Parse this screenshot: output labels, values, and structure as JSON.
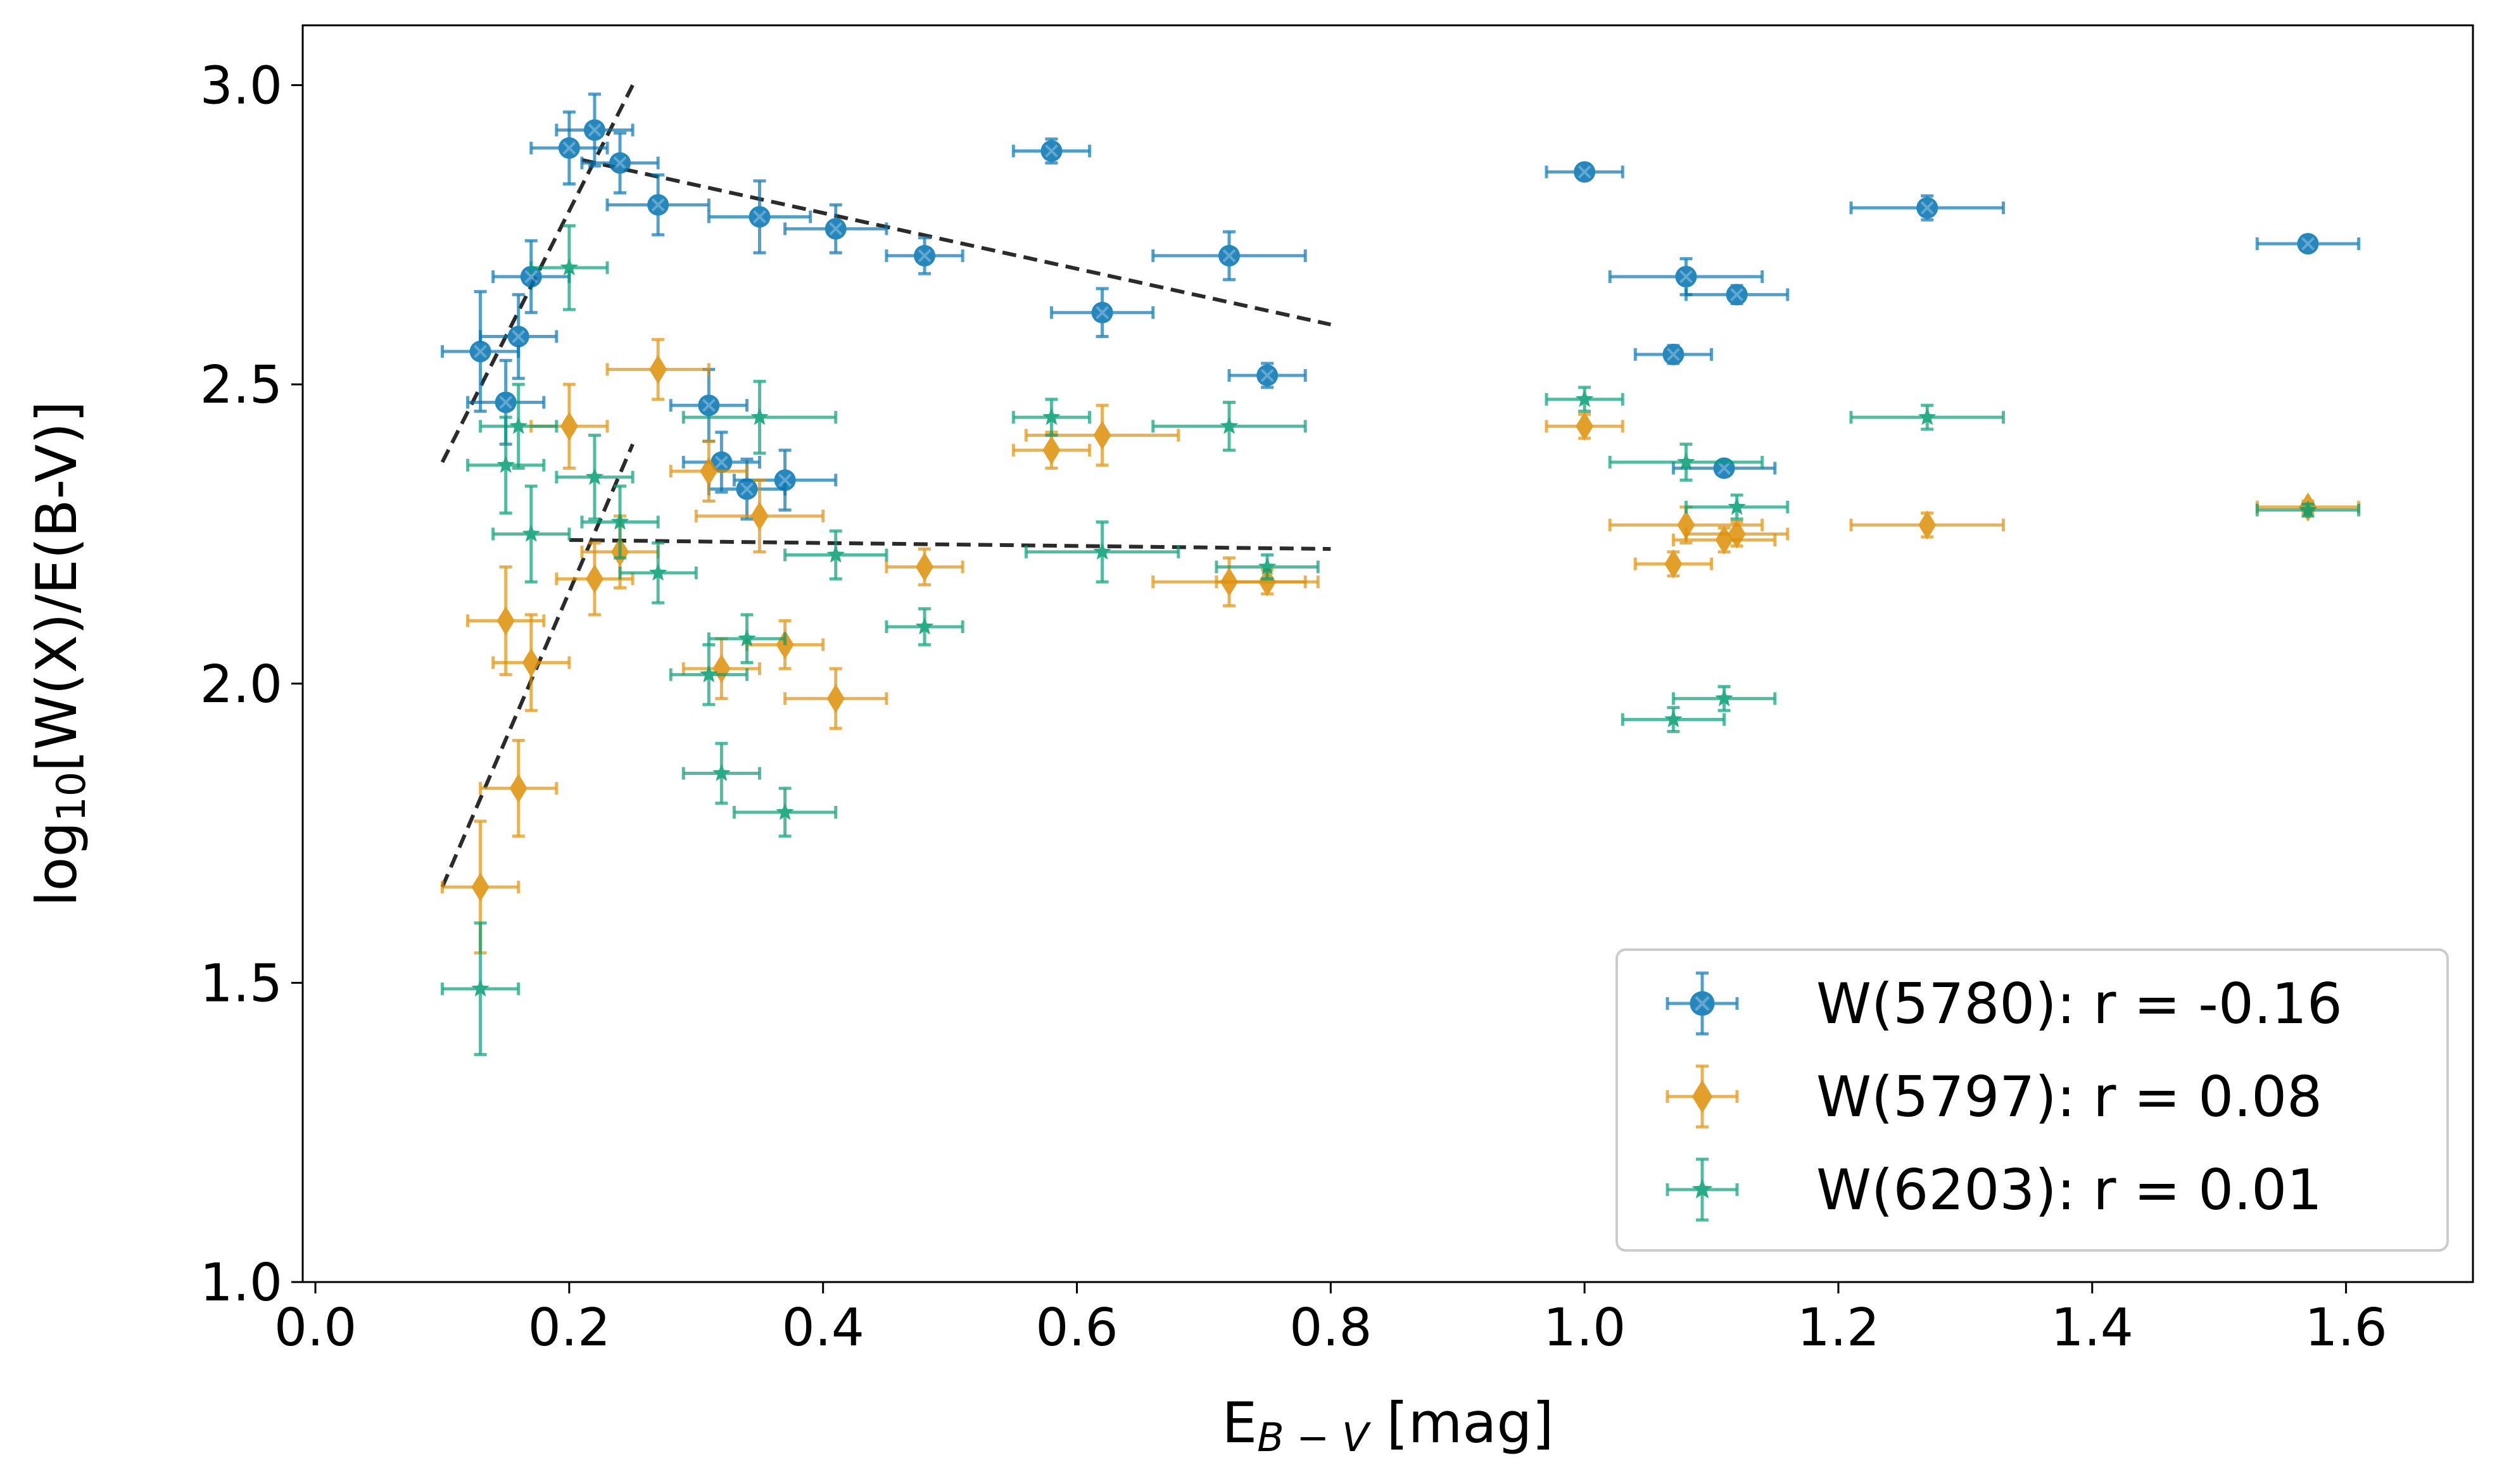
{
  "chart_data": {
    "type": "scatter",
    "xlabel_main": "E",
    "xlabel_sub": "B − V",
    "xlabel_unit": " [mag]",
    "ylabel_pre": "log",
    "ylabel_sub": "10",
    "ylabel_post": "[W(X)/E(B-V)]",
    "xlim": [
      -0.01,
      1.7
    ],
    "ylim": [
      1.0,
      3.1
    ],
    "xticks": [
      "0.0",
      "0.2",
      "0.4",
      "0.6",
      "0.8",
      "1.0",
      "1.2",
      "1.4",
      "1.6"
    ],
    "xtick_values": [
      0.0,
      0.2,
      0.4,
      0.6,
      0.8,
      1.0,
      1.2,
      1.4,
      1.6
    ],
    "yticks": [
      "1.0",
      "1.5",
      "2.0",
      "2.5",
      "3.0"
    ],
    "ytick_values": [
      1.0,
      1.5,
      2.0,
      2.5,
      3.0
    ],
    "legend_position": "lower-right",
    "series": [
      {
        "name": "W(5780): r = -0.16",
        "color": "#0173b2",
        "marker": "x-circle",
        "points": [
          [
            0.13,
            2.555,
            0.03,
            0.1
          ],
          [
            0.15,
            2.47,
            0.03,
            0.07
          ],
          [
            0.16,
            2.58,
            0.03,
            0.07
          ],
          [
            0.17,
            2.68,
            0.03,
            0.06
          ],
          [
            0.2,
            2.895,
            0.03,
            0.06
          ],
          [
            0.22,
            2.925,
            0.03,
            0.06
          ],
          [
            0.24,
            2.87,
            0.03,
            0.05
          ],
          [
            0.27,
            2.8,
            0.04,
            0.05
          ],
          [
            0.31,
            2.465,
            0.03,
            0.06
          ],
          [
            0.32,
            2.37,
            0.03,
            0.05
          ],
          [
            0.34,
            2.325,
            0.03,
            0.05
          ],
          [
            0.35,
            2.78,
            0.04,
            0.06
          ],
          [
            0.37,
            2.34,
            0.04,
            0.05
          ],
          [
            0.41,
            2.76,
            0.04,
            0.04
          ],
          [
            0.48,
            2.715,
            0.03,
            0.03
          ],
          [
            0.58,
            2.89,
            0.03,
            0.02
          ],
          [
            0.62,
            2.62,
            0.04,
            0.04
          ],
          [
            0.72,
            2.715,
            0.06,
            0.04
          ],
          [
            0.75,
            2.515,
            0.03,
            0.02
          ],
          [
            1.0,
            2.855,
            0.03,
            0.01
          ],
          [
            1.07,
            2.55,
            0.03,
            0.015
          ],
          [
            1.08,
            2.68,
            0.06,
            0.03
          ],
          [
            1.11,
            2.36,
            0.04,
            0.01
          ],
          [
            1.12,
            2.65,
            0.04,
            0.015
          ],
          [
            1.27,
            2.795,
            0.06,
            0.02
          ],
          [
            1.57,
            2.735,
            0.04,
            0.01
          ]
        ]
      },
      {
        "name": "W(5797): r = 0.08",
        "color": "#de8f05",
        "marker": "diamond",
        "points": [
          [
            0.13,
            1.66,
            0.03,
            0.11
          ],
          [
            0.15,
            2.105,
            0.03,
            0.09
          ],
          [
            0.16,
            1.825,
            0.03,
            0.08
          ],
          [
            0.17,
            2.035,
            0.03,
            0.08
          ],
          [
            0.2,
            2.43,
            0.03,
            0.07
          ],
          [
            0.22,
            2.175,
            0.03,
            0.06
          ],
          [
            0.24,
            2.22,
            0.03,
            0.06
          ],
          [
            0.27,
            2.525,
            0.04,
            0.05
          ],
          [
            0.31,
            2.355,
            0.03,
            0.05
          ],
          [
            0.32,
            2.025,
            0.03,
            0.05
          ],
          [
            0.35,
            2.28,
            0.05,
            0.06
          ],
          [
            0.37,
            2.065,
            0.03,
            0.04
          ],
          [
            0.41,
            1.975,
            0.04,
            0.05
          ],
          [
            0.48,
            2.195,
            0.03,
            0.03
          ],
          [
            0.58,
            2.39,
            0.03,
            0.03
          ],
          [
            0.62,
            2.415,
            0.06,
            0.05
          ],
          [
            0.72,
            2.17,
            0.06,
            0.04
          ],
          [
            0.75,
            2.17,
            0.04,
            0.02
          ],
          [
            1.0,
            2.43,
            0.03,
            0.02
          ],
          [
            1.07,
            2.2,
            0.03,
            0.02
          ],
          [
            1.08,
            2.265,
            0.06,
            0.03
          ],
          [
            1.11,
            2.24,
            0.04,
            0.02
          ],
          [
            1.12,
            2.25,
            0.04,
            0.02
          ],
          [
            1.27,
            2.265,
            0.06,
            0.02
          ],
          [
            1.57,
            2.295,
            0.04,
            0.01
          ]
        ]
      },
      {
        "name": "W(6203): r = 0.01",
        "color": "#029e73",
        "marker": "star",
        "points": [
          [
            0.13,
            1.49,
            0.03,
            0.11
          ],
          [
            0.15,
            2.365,
            0.03,
            0.08
          ],
          [
            0.16,
            2.43,
            0.03,
            0.07
          ],
          [
            0.17,
            2.25,
            0.03,
            0.08
          ],
          [
            0.2,
            2.695,
            0.03,
            0.07
          ],
          [
            0.22,
            2.345,
            0.03,
            0.07
          ],
          [
            0.24,
            2.27,
            0.03,
            0.06
          ],
          [
            0.27,
            2.185,
            0.03,
            0.05
          ],
          [
            0.31,
            2.015,
            0.03,
            0.05
          ],
          [
            0.32,
            1.85,
            0.03,
            0.05
          ],
          [
            0.34,
            2.075,
            0.03,
            0.04
          ],
          [
            0.35,
            2.445,
            0.06,
            0.06
          ],
          [
            0.37,
            1.785,
            0.04,
            0.04
          ],
          [
            0.41,
            2.215,
            0.04,
            0.04
          ],
          [
            0.48,
            2.095,
            0.03,
            0.03
          ],
          [
            0.58,
            2.445,
            0.03,
            0.03
          ],
          [
            0.62,
            2.22,
            0.06,
            0.05
          ],
          [
            0.72,
            2.43,
            0.06,
            0.04
          ],
          [
            0.75,
            2.195,
            0.04,
            0.02
          ],
          [
            1.0,
            2.475,
            0.03,
            0.02
          ],
          [
            1.07,
            1.94,
            0.04,
            0.02
          ],
          [
            1.08,
            2.37,
            0.06,
            0.03
          ],
          [
            1.11,
            1.975,
            0.04,
            0.02
          ],
          [
            1.12,
            2.295,
            0.04,
            0.02
          ],
          [
            1.27,
            2.445,
            0.06,
            0.02
          ],
          [
            1.57,
            2.29,
            0.04,
            0.01
          ]
        ]
      }
    ],
    "fit_lines": [
      {
        "name": "fit-5780-rise",
        "x": [
          0.1,
          0.25
        ],
        "y": [
          2.37,
          3.0
        ]
      },
      {
        "name": "fit-5780-fall",
        "x": [
          0.21,
          0.8
        ],
        "y": [
          2.875,
          2.6
        ]
      },
      {
        "name": "fit-5797-rise",
        "x": [
          0.1,
          0.25
        ],
        "y": [
          1.66,
          2.4
        ]
      },
      {
        "name": "fit-5797-flat",
        "x": [
          0.2,
          0.8
        ],
        "y": [
          2.24,
          2.225
        ]
      }
    ]
  }
}
